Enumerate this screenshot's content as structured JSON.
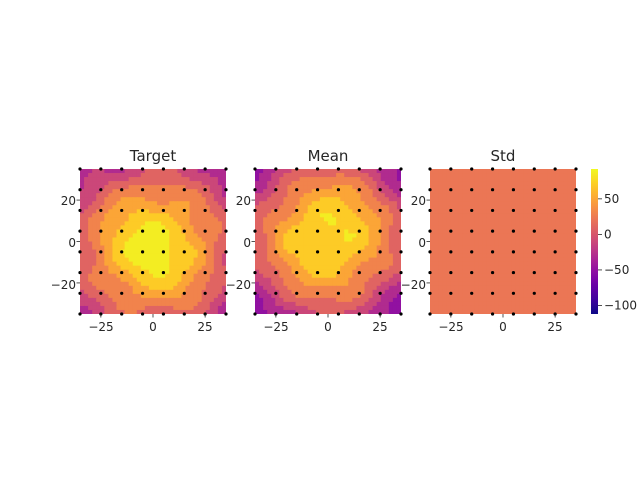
{
  "chart_data": [
    {
      "type": "heatmap",
      "title": "Target",
      "xlim": [
        -35,
        35
      ],
      "ylim": [
        -35,
        35
      ],
      "xticks": [
        -25,
        0,
        25
      ],
      "yticks": [
        -20,
        0,
        20
      ],
      "grid": false,
      "field": {
        "peak": 88,
        "center": [
          0,
          -3
        ],
        "sigma": 34,
        "edge_min": -105
      },
      "levels": [
        -100,
        -80,
        -60,
        -40,
        -20,
        0,
        20,
        40,
        60,
        80
      ]
    },
    {
      "type": "heatmap",
      "title": "Mean",
      "xlim": [
        -35,
        35
      ],
      "ylim": [
        -35,
        35
      ],
      "xticks": [
        -25,
        0,
        25
      ],
      "yticks": [
        -20,
        0,
        20
      ],
      "grid": false,
      "field": {
        "peak": 86,
        "center": [
          0,
          2
        ],
        "sigma": 33,
        "edge_min": -110
      },
      "levels": [
        -100,
        -80,
        -60,
        -40,
        -20,
        0,
        20,
        40,
        60,
        80
      ]
    },
    {
      "type": "heatmap",
      "title": "Std",
      "xlim": [
        -35,
        35
      ],
      "ylim": [
        -35,
        35
      ],
      "xticks": [
        -25,
        0,
        25
      ],
      "yticks": [
        -20,
        0,
        20
      ],
      "grid": false,
      "constant_value": 22,
      "colorbar": {
        "min": -112,
        "max": 92,
        "ticks": [
          -100,
          -50,
          0,
          50
        ],
        "colormap": "plasma"
      }
    }
  ],
  "sample_points": {
    "x": [
      -35,
      -25,
      -15,
      -5,
      5,
      15,
      25,
      35
    ],
    "y": [
      35,
      25,
      15,
      5,
      -5,
      -15,
      -25,
      -35
    ]
  },
  "colors": {
    "points": "#000000",
    "axis_text": "#262626",
    "plasma_stops": [
      "#0d0887",
      "#46039f",
      "#7201a8",
      "#9c179e",
      "#bd3786",
      "#d8576b",
      "#ed7953",
      "#fb9f3a",
      "#fdca26",
      "#f0f921"
    ]
  }
}
